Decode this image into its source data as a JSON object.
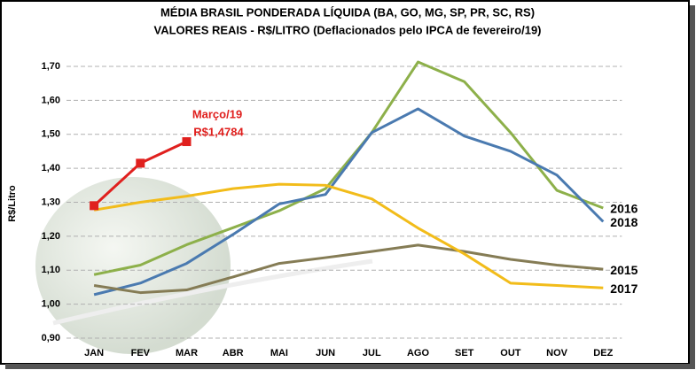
{
  "chart_data": {
    "type": "line",
    "title": "MÉDIA BRASIL PONDERADA LÍQUIDA (BA, GO, MG, SP, PR, SC, RS)",
    "subtitle": "VALORES REAIS - R$/LITRO (Deflacionados pelo IPCA de fevereiro/19)",
    "y_label": "R$/Litro",
    "annotations": [
      "Março/19"
    ],
    "categories": [
      "JAN",
      "FEV",
      "MAR",
      "ABR",
      "MAI",
      "JUN",
      "JUL",
      "AGO",
      "SET",
      "OUT",
      "NOV",
      "DEZ"
    ],
    "ylim": [
      0.9,
      1.7
    ],
    "yticks": [
      {
        "value": 0.9,
        "label": "0,90"
      },
      {
        "value": 1.0,
        "label": "1,00"
      },
      {
        "value": 1.1,
        "label": "1,10"
      },
      {
        "value": 1.2,
        "label": "1,20"
      },
      {
        "value": 1.3,
        "label": "1,30"
      },
      {
        "value": 1.4,
        "label": "1,40"
      },
      {
        "value": 1.5,
        "label": "1,50"
      },
      {
        "value": 1.6,
        "label": "1,60"
      },
      {
        "value": 1.7,
        "label": "1,70"
      }
    ],
    "grid": true,
    "series": [
      {
        "name": "2016",
        "color": "#8db04a",
        "values": [
          1.087,
          1.115,
          1.175,
          1.225,
          1.275,
          1.34,
          1.505,
          1.713,
          1.655,
          1.505,
          1.335,
          1.283
        ]
      },
      {
        "name": "2018",
        "color": "#4a7ab0",
        "values": [
          1.028,
          1.062,
          1.12,
          1.205,
          1.295,
          1.323,
          1.505,
          1.575,
          1.495,
          1.45,
          1.38,
          1.243
        ]
      },
      {
        "name": "2015",
        "color": "#857c55",
        "values": [
          1.055,
          1.034,
          1.042,
          1.08,
          1.12,
          1.137,
          1.155,
          1.174,
          1.155,
          1.132,
          1.115,
          1.103
        ]
      },
      {
        "name": "2017",
        "color": "#f2bc1a",
        "values": [
          1.277,
          1.3,
          1.318,
          1.34,
          1.353,
          1.35,
          1.31,
          1.224,
          1.148,
          1.062,
          1.055,
          1.048
        ]
      },
      {
        "color": "#e0201e",
        "markers": true,
        "values": [
          1.29,
          1.415,
          1.4784,
          null,
          null,
          null,
          null,
          null,
          null,
          null,
          null,
          null
        ],
        "value_labels": [
          null,
          null,
          "R$1,4784",
          null,
          null,
          null,
          null,
          null,
          null,
          null,
          null,
          null
        ]
      }
    ]
  }
}
